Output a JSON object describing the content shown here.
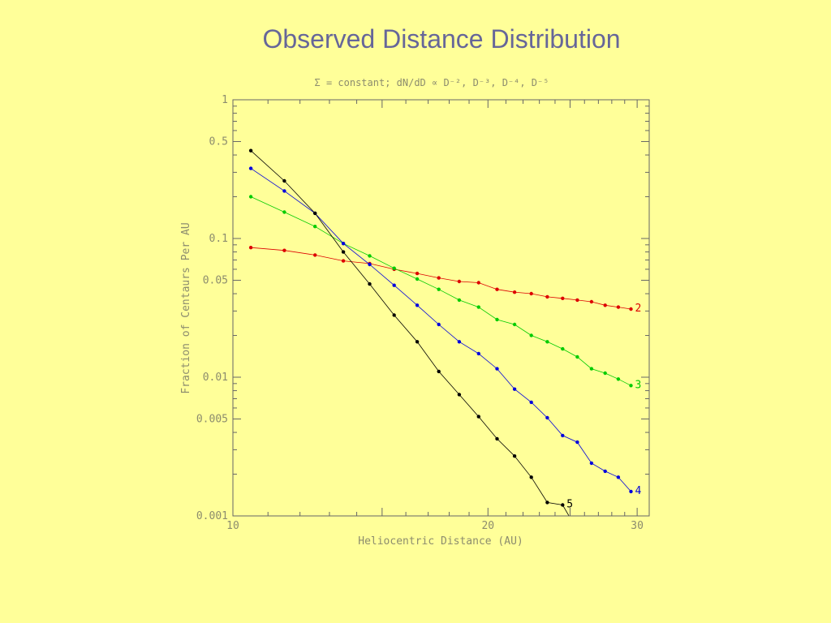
{
  "slide": {
    "title": "Observed Distance Distribution"
  },
  "chart_data": {
    "type": "line",
    "subtitle": "Σ = constant; dN/dD ∝ D⁻², D⁻³, D⁻⁴, D⁻⁵",
    "xlabel": "Heliocentric Distance (AU)",
    "ylabel": "Fraction of Centaurs Per AU",
    "xscale": "log",
    "yscale": "log",
    "xlim": [
      10,
      31
    ],
    "ylim": [
      0.001,
      1
    ],
    "xticks": [
      {
        "value": 10,
        "label": "10"
      },
      {
        "value": 20,
        "label": "20"
      },
      {
        "value": 30,
        "label": "30"
      }
    ],
    "yticks": [
      {
        "value": 1,
        "label": "1"
      },
      {
        "value": 0.5,
        "label": "0.5"
      },
      {
        "value": 0.1,
        "label": "0.1"
      },
      {
        "value": 0.05,
        "label": "0.05"
      },
      {
        "value": 0.01,
        "label": "0.01"
      },
      {
        "value": 0.005,
        "label": "0.005"
      },
      {
        "value": 0.001,
        "label": "0.001"
      }
    ],
    "grid": false,
    "series": [
      {
        "name": "2",
        "color": "#dd0000",
        "x": [
          10.5,
          11.5,
          12.5,
          13.5,
          14.5,
          15.5,
          16.5,
          17.5,
          18.5,
          19.5,
          20.5,
          21.5,
          22.5,
          23.5,
          24.5,
          25.5,
          26.5,
          27.5,
          28.5,
          29.5
        ],
        "y": [
          0.086,
          0.082,
          0.076,
          0.069,
          0.066,
          0.06,
          0.056,
          0.052,
          0.049,
          0.048,
          0.043,
          0.041,
          0.04,
          0.038,
          0.037,
          0.036,
          0.035,
          0.033,
          0.032,
          0.031
        ]
      },
      {
        "name": "3",
        "color": "#00cc00",
        "x": [
          10.5,
          11.5,
          12.5,
          13.5,
          14.5,
          15.5,
          16.5,
          17.5,
          18.5,
          19.5,
          20.5,
          21.5,
          22.5,
          23.5,
          24.5,
          25.5,
          26.5,
          27.5,
          28.5,
          29.5
        ],
        "y": [
          0.2,
          0.155,
          0.122,
          0.092,
          0.075,
          0.061,
          0.051,
          0.043,
          0.036,
          0.032,
          0.026,
          0.024,
          0.02,
          0.018,
          0.016,
          0.014,
          0.0115,
          0.0107,
          0.0097,
          0.0087
        ]
      },
      {
        "name": "4",
        "color": "#0000dd",
        "x": [
          10.5,
          11.5,
          12.5,
          13.5,
          14.5,
          15.5,
          16.5,
          17.5,
          18.5,
          19.5,
          20.5,
          21.5,
          22.5,
          23.5,
          24.5,
          25.5,
          26.5,
          27.5,
          28.5,
          29.5
        ],
        "y": [
          0.32,
          0.22,
          0.152,
          0.092,
          0.065,
          0.046,
          0.033,
          0.024,
          0.018,
          0.0148,
          0.0115,
          0.0082,
          0.0066,
          0.0051,
          0.0038,
          0.0034,
          0.0024,
          0.0021,
          0.0019,
          0.0015
        ]
      },
      {
        "name": "5",
        "color": "#000000",
        "x": [
          10.5,
          11.5,
          12.5,
          13.5,
          14.5,
          15.5,
          16.5,
          17.5,
          18.5,
          19.5,
          20.5,
          21.5,
          22.5,
          23.5,
          24.5
        ],
        "y": [
          0.43,
          0.26,
          0.152,
          0.08,
          0.047,
          0.028,
          0.018,
          0.011,
          0.0075,
          0.0052,
          0.0036,
          0.0027,
          0.0019,
          0.00125,
          0.0012
        ]
      }
    ]
  }
}
